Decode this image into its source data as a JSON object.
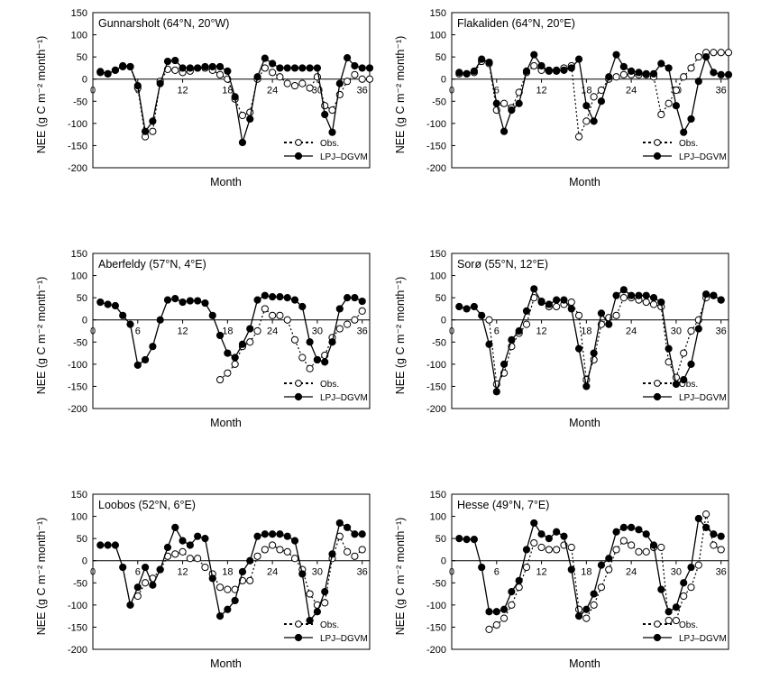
{
  "y_ticks": [
    "150",
    "100",
    "50",
    "0",
    "-50",
    "-100",
    "-150",
    "-200"
  ],
  "x_ticks": [
    "0",
    "6",
    "12",
    "18",
    "24",
    "30",
    "36"
  ],
  "xlabel": "Month",
  "ylabel": "NEE (g C m⁻² month⁻¹)",
  "legend": {
    "obs": "Obs.",
    "model": "LPJ–DGVM"
  },
  "chart_data": [
    {
      "type": "line",
      "title": "Gunnarsholt (64°N, 20°W)",
      "xlabel": "Month",
      "ylabel": "NEE (g C m⁻² month⁻¹)",
      "xlim": [
        0,
        37
      ],
      "ylim": [
        -200,
        150
      ],
      "series": [
        {
          "name": "Obs.",
          "style": "dotted-open",
          "x": [
            1,
            2,
            3,
            4,
            5,
            6,
            7,
            8,
            9,
            10,
            11,
            12,
            13,
            14,
            15,
            16,
            17,
            18,
            19,
            20,
            21,
            22,
            23,
            24,
            25,
            26,
            27,
            28,
            29,
            30,
            31,
            32,
            33,
            34,
            35,
            36,
            37
          ],
          "y": [
            15,
            12,
            20,
            28,
            28,
            -20,
            -130,
            -118,
            -5,
            22,
            20,
            15,
            18,
            25,
            25,
            20,
            10,
            0,
            -45,
            -82,
            -75,
            0,
            25,
            15,
            5,
            -10,
            -15,
            -10,
            -20,
            5,
            -60,
            -70,
            -35,
            -5,
            10,
            0,
            0
          ]
        },
        {
          "name": "LPJ–DGVM",
          "style": "solid-filled",
          "x": [
            1,
            2,
            3,
            4,
            5,
            6,
            7,
            8,
            9,
            10,
            11,
            12,
            13,
            14,
            15,
            16,
            17,
            18,
            19,
            20,
            21,
            22,
            23,
            24,
            25,
            26,
            27,
            28,
            29,
            30,
            31,
            32,
            33,
            34,
            35,
            36,
            37
          ],
          "y": [
            17,
            12,
            20,
            30,
            28,
            -15,
            -118,
            -95,
            -10,
            40,
            42,
            25,
            25,
            25,
            28,
            28,
            28,
            18,
            -40,
            -143,
            -90,
            5,
            47,
            35,
            25,
            25,
            25,
            25,
            25,
            25,
            -80,
            -120,
            -10,
            48,
            30,
            25,
            25
          ]
        }
      ]
    },
    {
      "type": "line",
      "title": "Flakaliden (64°N, 20°E)",
      "xlabel": "Month",
      "ylabel": "NEE (g C m⁻² month⁻¹)",
      "xlim": [
        0,
        37
      ],
      "ylim": [
        -200,
        150
      ],
      "series": [
        {
          "name": "Obs.",
          "style": "dotted-open",
          "x": [
            1,
            2,
            3,
            4,
            5,
            6,
            7,
            8,
            9,
            10,
            11,
            12,
            13,
            14,
            15,
            16,
            17,
            18,
            19,
            20,
            21,
            22,
            23,
            24,
            25,
            26,
            27,
            28,
            29,
            30,
            31,
            32,
            33,
            34,
            35,
            36,
            37
          ],
          "y": [
            12,
            12,
            15,
            40,
            35,
            -70,
            -55,
            -65,
            -30,
            15,
            30,
            20,
            20,
            20,
            25,
            30,
            -130,
            -95,
            -40,
            -25,
            0,
            5,
            10,
            10,
            10,
            10,
            5,
            -80,
            -55,
            -25,
            5,
            25,
            50,
            60,
            60,
            60,
            60
          ]
        },
        {
          "name": "LPJ–DGVM",
          "style": "solid-filled",
          "x": [
            1,
            2,
            3,
            4,
            5,
            6,
            7,
            8,
            9,
            10,
            11,
            12,
            13,
            14,
            15,
            16,
            17,
            18,
            19,
            20,
            21,
            22,
            23,
            24,
            25,
            26,
            27,
            28,
            29,
            30,
            31,
            32,
            33,
            34,
            35,
            36,
            37
          ],
          "y": [
            15,
            12,
            18,
            45,
            38,
            -55,
            -118,
            -70,
            -55,
            18,
            55,
            30,
            18,
            18,
            20,
            25,
            45,
            -60,
            -95,
            -50,
            5,
            55,
            28,
            18,
            15,
            12,
            12,
            35,
            25,
            -60,
            -120,
            -90,
            -5,
            50,
            15,
            10,
            10
          ]
        }
      ]
    },
    {
      "type": "line",
      "title": "Aberfeldy (57°N, 4°E)",
      "xlabel": "Month",
      "ylabel": "NEE (g C m⁻² month⁻¹)",
      "xlim": [
        0,
        37
      ],
      "ylim": [
        -200,
        150
      ],
      "series": [
        {
          "name": "Obs.",
          "style": "dotted-open",
          "x": [
            17,
            18,
            19,
            20,
            21,
            22,
            23,
            24,
            25,
            26,
            27,
            28,
            29,
            30,
            31,
            32,
            33,
            34,
            35,
            36
          ],
          "y": [
            -135,
            -120,
            -100,
            -60,
            -50,
            -25,
            25,
            10,
            10,
            0,
            -45,
            -85,
            -110,
            -90,
            -80,
            -40,
            -20,
            -10,
            0,
            20
          ]
        },
        {
          "name": "LPJ–DGVM",
          "style": "solid-filled",
          "x": [
            1,
            2,
            3,
            4,
            5,
            6,
            7,
            8,
            9,
            10,
            11,
            12,
            13,
            14,
            15,
            16,
            17,
            18,
            19,
            20,
            21,
            22,
            23,
            24,
            25,
            26,
            27,
            28,
            29,
            30,
            31,
            32,
            33,
            34,
            35,
            36
          ],
          "y": [
            40,
            35,
            32,
            10,
            -10,
            -102,
            -90,
            -60,
            0,
            45,
            48,
            40,
            43,
            43,
            38,
            10,
            -35,
            -75,
            -85,
            -55,
            -20,
            45,
            55,
            52,
            52,
            50,
            45,
            30,
            -50,
            -90,
            -95,
            -50,
            25,
            50,
            50,
            42
          ]
        }
      ]
    },
    {
      "type": "line",
      "title": "Sorø (55°N, 12°E)",
      "xlabel": "Month",
      "ylabel": "NEE (g C m⁻² month⁻¹)",
      "xlim": [
        0,
        37
      ],
      "ylim": [
        -200,
        150
      ],
      "series": [
        {
          "name": "Obs.",
          "style": "dotted-open",
          "x": [
            5,
            6,
            7,
            8,
            9,
            10,
            11,
            12,
            13,
            14,
            15,
            16,
            17,
            18,
            19,
            20,
            21,
            22,
            23,
            24,
            25,
            26,
            27,
            28,
            29,
            30,
            31,
            32,
            33,
            34,
            35,
            36
          ],
          "y": [
            0,
            -145,
            -120,
            -60,
            -30,
            -10,
            50,
            42,
            30,
            30,
            35,
            40,
            10,
            -135,
            -90,
            -10,
            5,
            10,
            50,
            50,
            45,
            40,
            35,
            30,
            -95,
            -130,
            -75,
            -25,
            0,
            50,
            55,
            45
          ]
        },
        {
          "name": "LPJ–DGVM",
          "style": "solid-filled",
          "x": [
            1,
            2,
            3,
            4,
            5,
            6,
            7,
            8,
            9,
            10,
            11,
            12,
            13,
            14,
            15,
            16,
            17,
            18,
            19,
            20,
            21,
            22,
            23,
            24,
            25,
            26,
            27,
            28,
            29,
            30,
            31,
            32,
            33,
            34,
            35,
            36
          ],
          "y": [
            30,
            25,
            30,
            10,
            -55,
            -162,
            -100,
            -45,
            -25,
            20,
            70,
            40,
            35,
            45,
            45,
            25,
            -65,
            -150,
            -75,
            15,
            -10,
            55,
            68,
            55,
            55,
            55,
            50,
            40,
            -65,
            -145,
            -135,
            -100,
            -20,
            58,
            55,
            45
          ]
        }
      ]
    },
    {
      "type": "line",
      "title": "Loobos (52°N, 6°E)",
      "xlabel": "Month",
      "ylabel": "NEE (g C m⁻² month⁻¹)",
      "xlim": [
        0,
        37
      ],
      "ylim": [
        -200,
        150
      ],
      "series": [
        {
          "name": "Obs.",
          "style": "dotted-open",
          "x": [
            6,
            7,
            8,
            9,
            10,
            11,
            12,
            13,
            14,
            15,
            16,
            17,
            18,
            19,
            20,
            21,
            22,
            23,
            24,
            25,
            26,
            27,
            28,
            29,
            30,
            31,
            32,
            33,
            34,
            35,
            36
          ],
          "y": [
            -80,
            -50,
            -40,
            -20,
            10,
            15,
            20,
            5,
            5,
            -15,
            -30,
            -60,
            -65,
            -65,
            -45,
            -45,
            10,
            25,
            35,
            25,
            20,
            5,
            -20,
            -75,
            -100,
            -95,
            5,
            55,
            20,
            10,
            25
          ]
        },
        {
          "name": "LPJ–DGVM",
          "style": "solid-filled",
          "x": [
            1,
            2,
            3,
            4,
            5,
            6,
            7,
            8,
            9,
            10,
            11,
            12,
            13,
            14,
            15,
            16,
            17,
            18,
            19,
            20,
            21,
            22,
            23,
            24,
            25,
            26,
            27,
            28,
            29,
            30,
            31,
            32,
            33,
            34,
            35,
            36
          ],
          "y": [
            35,
            35,
            35,
            -15,
            -100,
            -60,
            -15,
            -55,
            -20,
            30,
            75,
            45,
            35,
            55,
            50,
            -40,
            -125,
            -110,
            -90,
            -25,
            0,
            55,
            60,
            60,
            60,
            55,
            45,
            -30,
            -135,
            -115,
            -70,
            15,
            85,
            75,
            60,
            60
          ]
        }
      ]
    },
    {
      "type": "line",
      "title": "Hesse (49°N, 7°E)",
      "xlabel": "Month",
      "ylabel": "NEE (g C m⁻² month⁻¹)",
      "xlim": [
        0,
        37
      ],
      "ylim": [
        -200,
        150
      ],
      "series": [
        {
          "name": "Obs.",
          "style": "dotted-open",
          "x": [
            5,
            6,
            7,
            8,
            9,
            10,
            11,
            12,
            13,
            14,
            15,
            16,
            17,
            18,
            19,
            20,
            21,
            22,
            23,
            24,
            25,
            26,
            27,
            28,
            29,
            30,
            31,
            32,
            33,
            34,
            35,
            36
          ],
          "y": [
            -155,
            -145,
            -130,
            -100,
            -60,
            -15,
            40,
            30,
            25,
            25,
            35,
            30,
            -110,
            -130,
            -100,
            -60,
            -20,
            25,
            45,
            35,
            20,
            20,
            30,
            30,
            -135,
            -135,
            -80,
            -60,
            -10,
            105,
            35,
            25
          ]
        },
        {
          "name": "LPJ–DGVM",
          "style": "solid-filled",
          "x": [
            1,
            2,
            3,
            4,
            5,
            6,
            7,
            8,
            9,
            10,
            11,
            12,
            13,
            14,
            15,
            16,
            17,
            18,
            19,
            20,
            21,
            22,
            23,
            24,
            25,
            26,
            27,
            28,
            29,
            30,
            31,
            32,
            33,
            34,
            35,
            36
          ],
          "y": [
            50,
            48,
            48,
            -15,
            -115,
            -115,
            -110,
            -70,
            -45,
            25,
            85,
            60,
            50,
            65,
            55,
            -20,
            -125,
            -110,
            -75,
            -10,
            5,
            65,
            75,
            75,
            70,
            60,
            35,
            -65,
            -115,
            -105,
            -50,
            -15,
            95,
            75,
            60,
            55
          ]
        }
      ]
    }
  ]
}
